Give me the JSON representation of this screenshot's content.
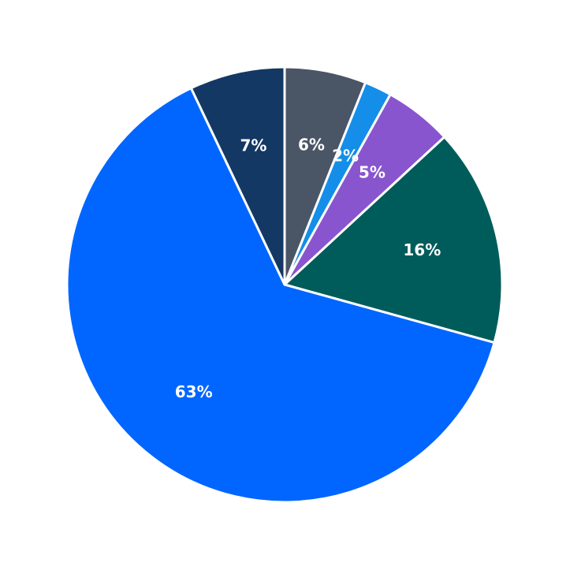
{
  "chart_data": {
    "type": "pie",
    "values": [
      6,
      2,
      5,
      16,
      63,
      7
    ],
    "value_labels": [
      "6%",
      "2%",
      "5%",
      "16%",
      "63%",
      "7%"
    ],
    "colors": [
      "#4a5565",
      "#148ee8",
      "#8855cf",
      "#005c5a",
      "#0066ff",
      "#143864"
    ]
  }
}
